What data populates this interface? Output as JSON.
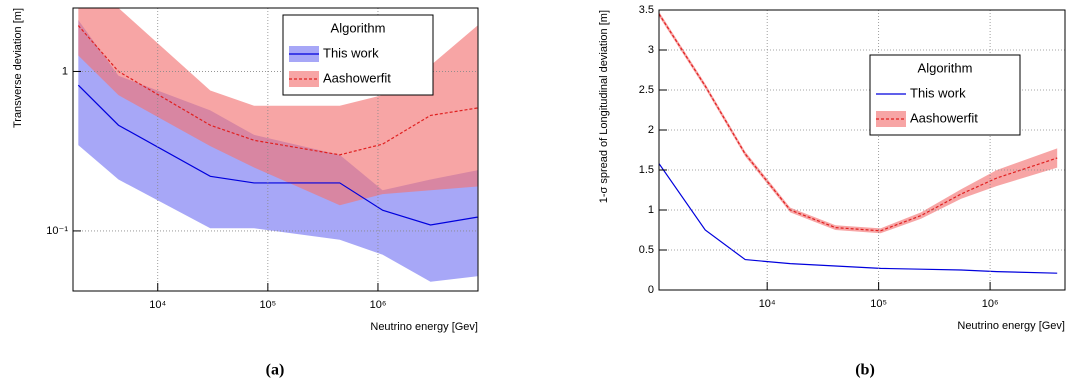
{
  "chart_data": [
    {
      "type": "line",
      "caption": "(a)",
      "x_label": "Neutrino energy [Gev]",
      "y_label": "Transverse deviation [m]",
      "xlog": true,
      "ylog": true,
      "grid": true,
      "xlim": [
        1700,
        8100000
      ],
      "ylim": [
        0.042,
        2.5
      ],
      "xticks": [
        {
          "value": 10000,
          "label": "10⁴"
        },
        {
          "value": 100000,
          "label": "10⁵"
        },
        {
          "value": 1000000,
          "label": "10⁶"
        }
      ],
      "yticks": [
        {
          "value": 0.1,
          "label": "10⁻¹"
        },
        1
      ],
      "legend_title": "Algorithm",
      "legend_position": "upper right",
      "x": [
        1900,
        4400,
        30000,
        75000,
        450000,
        1100000,
        3000000,
        8000000
      ],
      "series": [
        {
          "name": "This work",
          "color": "#0000dd",
          "band_color": "#7878f2",
          "dash": false,
          "values": [
            0.82,
            0.46,
            0.22,
            0.2,
            0.2,
            0.135,
            0.109,
            0.122
          ],
          "band_high": [
            2.1,
            0.94,
            0.57,
            0.4,
            0.3,
            0.18,
            0.21,
            0.24
          ],
          "band_low": [
            0.345,
            0.21,
            0.104,
            0.104,
            0.088,
            0.071,
            0.048,
            0.052
          ]
        },
        {
          "name": "Aashowerfit",
          "color": "#e02020",
          "band_color": "#f27474",
          "dash": true,
          "values": [
            1.94,
            1.0,
            0.46,
            0.37,
            0.3,
            0.35,
            0.53,
            0.59
          ],
          "band_high": [
            2.5,
            2.5,
            0.76,
            0.61,
            0.61,
            0.71,
            1.09,
            1.94
          ],
          "band_low": [
            1.26,
            0.71,
            0.34,
            0.25,
            0.145,
            0.17,
            0.18,
            0.19
          ]
        }
      ]
    },
    {
      "type": "line",
      "caption": "(b)",
      "x_label": "Neutrino energy [Gev]",
      "y_label": "1-σ spread of Longitudinal deviation [m]",
      "xlog": true,
      "ylog": false,
      "grid": true,
      "xlim": [
        1070,
        4700000
      ],
      "ylim": [
        0,
        3.5
      ],
      "xticks": [
        {
          "value": 10000,
          "label": "10⁴"
        },
        {
          "value": 100000,
          "label": "10⁵"
        },
        {
          "value": 1000000,
          "label": "10⁶"
        }
      ],
      "yticks": [
        0,
        0.5,
        1,
        1.5,
        2,
        2.5,
        3,
        3.5
      ],
      "legend_title": "Algorithm",
      "legend_position": "center right",
      "x": [
        1070,
        2780,
        6350,
        16100,
        41000,
        104000,
        240000,
        550000,
        1150000,
        4000000
      ],
      "series": [
        {
          "name": "This work",
          "color": "#0000dd",
          "dash": false,
          "values": [
            1.58,
            0.75,
            0.38,
            0.33,
            0.3,
            0.27,
            0.26,
            0.25,
            0.23,
            0.21
          ]
        },
        {
          "name": "Aashowerfit",
          "color": "#e02020",
          "band_color": "#f27474",
          "dash": true,
          "values": [
            3.45,
            2.55,
            1.7,
            1.0,
            0.78,
            0.74,
            0.93,
            1.2,
            1.4,
            1.65
          ],
          "band_high": [
            3.48,
            2.58,
            1.73,
            1.03,
            0.81,
            0.77,
            0.97,
            1.26,
            1.5,
            1.77
          ],
          "band_low": [
            3.42,
            2.52,
            1.67,
            0.97,
            0.75,
            0.71,
            0.89,
            1.14,
            1.3,
            1.53
          ]
        }
      ]
    }
  ]
}
